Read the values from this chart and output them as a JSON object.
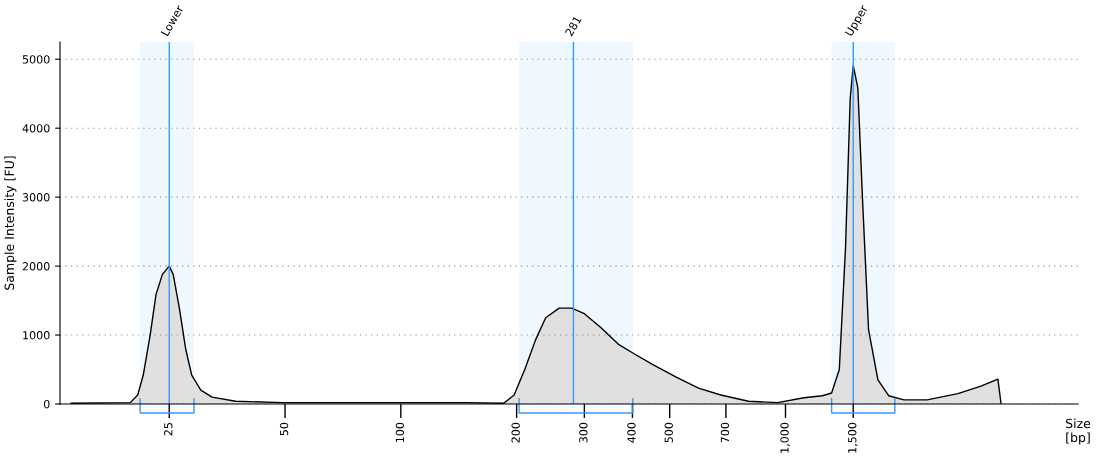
{
  "chart_data": {
    "type": "area",
    "ylabel": "Sample Intensity [FU]",
    "xlabel": "Size\n[bp]",
    "log": "x",
    "x": [
      13.9,
      19.8,
      20.7,
      21.4,
      22.3,
      23.1,
      24.0,
      25,
      25.6,
      26.6,
      27.6,
      28.6,
      30.2,
      32.3,
      37.2,
      49.3,
      84.6,
      147,
      185,
      197,
      210,
      224,
      238,
      258,
      278,
      300,
      331,
      369,
      401,
      452,
      520,
      594,
      679,
      801,
      955,
      1117,
      1247,
      1318,
      1380,
      1432,
      1473,
      1500,
      1542,
      1586,
      1644,
      1739,
      1854,
      2033,
      2334,
      2807,
      3222,
      3566,
      3635
    ],
    "series": [
      {
        "color": "#e0e0e0",
        "values": [
          10,
          20,
          130,
          420,
          1000,
          1590,
          1880,
          2000,
          1880,
          1370,
          790,
          420,
          200,
          100,
          40,
          20,
          20,
          20,
          10,
          130,
          500,
          930,
          1250,
          1390,
          1390,
          1310,
          1110,
          860,
          740,
          570,
          390,
          230,
          130,
          40,
          20,
          90,
          120,
          160,
          500,
          2250,
          4430,
          4910,
          4580,
          2960,
          1080,
          350,
          120,
          60,
          60,
          150,
          260,
          360,
          0
        ]
      }
    ],
    "xlim": [
      13,
      5760
    ],
    "ylim": [
      0,
      5250
    ],
    "yticks": [
      0,
      1000,
      2000,
      3000,
      4000,
      5000
    ],
    "xticks": [
      25,
      50,
      100,
      200,
      300,
      400,
      500,
      700,
      {
        "value": 1000,
        "label": "1,000"
      },
      {
        "value": 1500,
        "label": "1,500"
      }
    ],
    "ref_lines": [
      {
        "axis": "x",
        "value": 25,
        "label": "Lower",
        "color": "#3399ff"
      },
      {
        "axis": "x",
        "value": 281,
        "label": "281",
        "color": "#3399ff"
      },
      {
        "axis": "x",
        "value": 1500,
        "label": "Upper",
        "color": "#3399ff"
      }
    ],
    "bands": [
      {
        "axis": "x",
        "from": 21,
        "to": 29,
        "color": "#3399ff"
      },
      {
        "axis": "x",
        "from": 203,
        "to": 401,
        "color": "#3399ff"
      },
      {
        "axis": "x",
        "from": 1318,
        "to": 1924,
        "color": "#3399ff"
      }
    ],
    "grid": "y",
    "legend": false
  }
}
